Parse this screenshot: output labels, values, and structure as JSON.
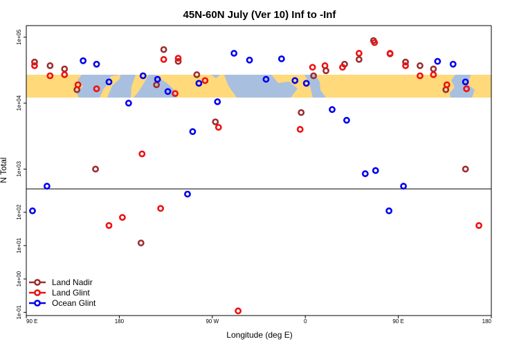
{
  "chart_data": {
    "type": "scatter",
    "title": "45N-60N July (Ver 10)   Inf to -Inf",
    "xlabel": "Longitude (deg E)",
    "ylabel": "N Total",
    "x_ticks": [
      "90 E",
      "180",
      "90 W",
      "0",
      "90 E",
      "180"
    ],
    "upper_y_ticks": [
      "1e+03",
      "1e+04",
      "1e+05"
    ],
    "lower_y_ticks": [
      "1e-01",
      "1e+00",
      "1e+01",
      "1e+02"
    ],
    "upper_ylim": [
      500,
      150000
    ],
    "lower_ylim": [
      0.08,
      500
    ],
    "xlim": [
      90,
      540
    ],
    "legend_position": "bottom-left",
    "map_band_lat": "45N-60N",
    "colors": {
      "land_nadir": "#9b2d30",
      "land_glint": "#ee1111",
      "ocean_glint": "#0000ee",
      "ocean": "#a8bfe0",
      "land": "#ffd97a"
    },
    "series": [
      {
        "name": "Land Nadir",
        "color": "#9b2d30",
        "points": [
          {
            "lon": 98,
            "n": 42000
          },
          {
            "lon": 113,
            "n": 37000
          },
          {
            "lon": 127,
            "n": 33000
          },
          {
            "lon": 139,
            "n": 16000
          },
          {
            "lon": 157,
            "n": 1000
          },
          {
            "lon": 201,
            "n": 12
          },
          {
            "lon": 216,
            "n": 19000
          },
          {
            "lon": 223,
            "n": 65000
          },
          {
            "lon": 237,
            "n": 43000
          },
          {
            "lon": 255,
            "n": 27000
          },
          {
            "lon": 273,
            "n": 5200
          },
          {
            "lon": 356,
            "n": 7200
          },
          {
            "lon": 368,
            "n": 26000
          },
          {
            "lon": 380,
            "n": 31000
          },
          {
            "lon": 398,
            "n": 39000
          },
          {
            "lon": 412,
            "n": 46000
          },
          {
            "lon": 426,
            "n": 89000
          },
          {
            "lon": 442,
            "n": 56000
          },
          {
            "lon": 457,
            "n": 42000
          },
          {
            "lon": 471,
            "n": 37000
          },
          {
            "lon": 484,
            "n": 33000
          },
          {
            "lon": 496,
            "n": 16000
          },
          {
            "lon": 515,
            "n": 1000
          }
        ]
      },
      {
        "name": "Land Glint",
        "color": "#ee1111",
        "points": [
          {
            "lon": 98,
            "n": 37000
          },
          {
            "lon": 113,
            "n": 26000
          },
          {
            "lon": 127,
            "n": 27000
          },
          {
            "lon": 140,
            "n": 19000
          },
          {
            "lon": 158,
            "n": 16500
          },
          {
            "lon": 170,
            "n": 40
          },
          {
            "lon": 183,
            "n": 70
          },
          {
            "lon": 202,
            "n": 1700
          },
          {
            "lon": 220,
            "n": 130
          },
          {
            "lon": 223,
            "n": 46000
          },
          {
            "lon": 234,
            "n": 14000
          },
          {
            "lon": 237,
            "n": 48000
          },
          {
            "lon": 263,
            "n": 22000
          },
          {
            "lon": 276,
            "n": 4300
          },
          {
            "lon": 295,
            "n": 0.11
          },
          {
            "lon": 355,
            "n": 4000
          },
          {
            "lon": 367,
            "n": 35000
          },
          {
            "lon": 379,
            "n": 37000
          },
          {
            "lon": 396,
            "n": 35000
          },
          {
            "lon": 412,
            "n": 57000
          },
          {
            "lon": 427,
            "n": 83000
          },
          {
            "lon": 442,
            "n": 57000
          },
          {
            "lon": 457,
            "n": 37000
          },
          {
            "lon": 471,
            "n": 26000
          },
          {
            "lon": 484,
            "n": 27000
          },
          {
            "lon": 497,
            "n": 19000
          },
          {
            "lon": 516,
            "n": 16500
          },
          {
            "lon": 528,
            "n": 40
          }
        ]
      },
      {
        "name": "Ocean Glint",
        "color": "#0000ee",
        "points": [
          {
            "lon": 96,
            "n": 110
          },
          {
            "lon": 110,
            "n": 550
          },
          {
            "lon": 145,
            "n": 44000
          },
          {
            "lon": 158,
            "n": 39000
          },
          {
            "lon": 170,
            "n": 21000
          },
          {
            "lon": 189,
            "n": 10000
          },
          {
            "lon": 203,
            "n": 26000
          },
          {
            "lon": 217,
            "n": 23000
          },
          {
            "lon": 227,
            "n": 15000
          },
          {
            "lon": 246,
            "n": 350
          },
          {
            "lon": 251,
            "n": 3700
          },
          {
            "lon": 257,
            "n": 20000
          },
          {
            "lon": 275,
            "n": 10500
          },
          {
            "lon": 291,
            "n": 57000
          },
          {
            "lon": 306,
            "n": 45000
          },
          {
            "lon": 322,
            "n": 23000
          },
          {
            "lon": 337,
            "n": 47000
          },
          {
            "lon": 350,
            "n": 22000
          },
          {
            "lon": 361,
            "n": 20000
          },
          {
            "lon": 386,
            "n": 8000
          },
          {
            "lon": 400,
            "n": 5500
          },
          {
            "lon": 418,
            "n": 850
          },
          {
            "lon": 428,
            "n": 950
          },
          {
            "lon": 441,
            "n": 110
          },
          {
            "lon": 455,
            "n": 550
          },
          {
            "lon": 488,
            "n": 43000
          },
          {
            "lon": 503,
            "n": 39000
          },
          {
            "lon": 515,
            "n": 21000
          }
        ]
      }
    ]
  }
}
